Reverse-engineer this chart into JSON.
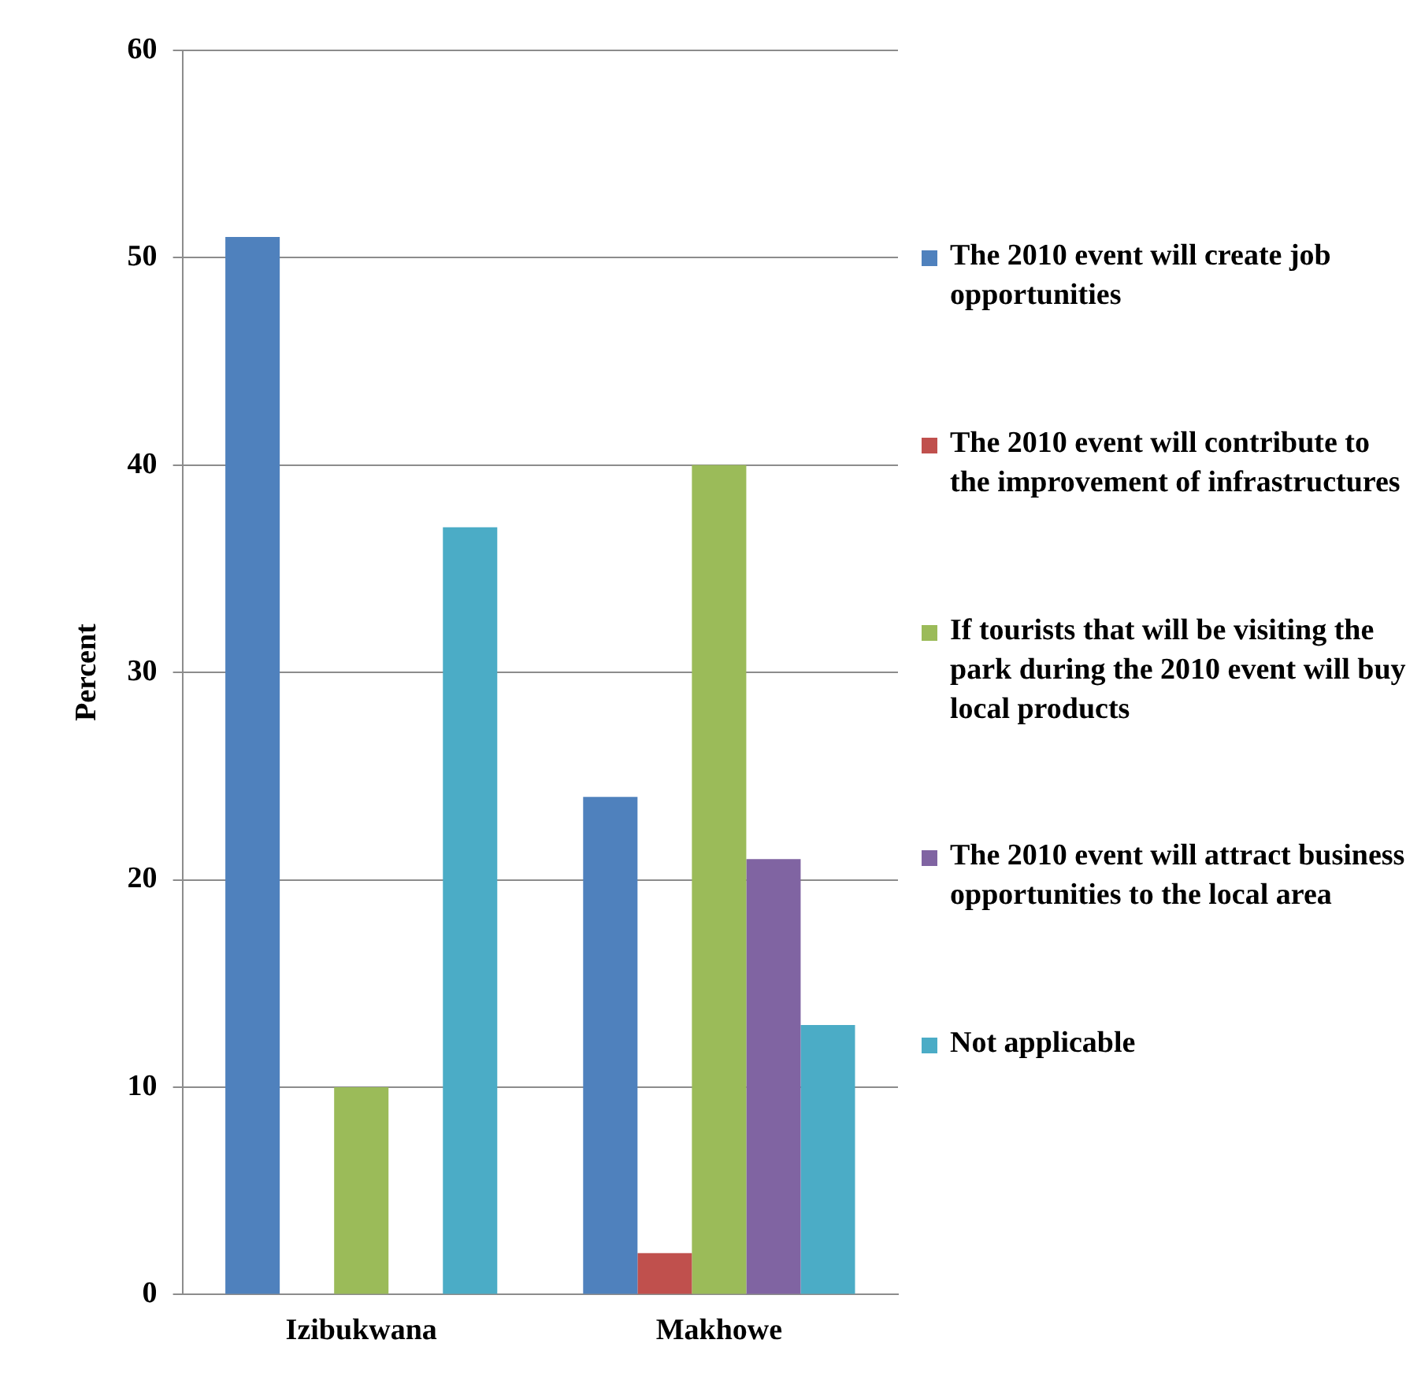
{
  "chart_data": {
    "type": "bar",
    "ylabel": "Percent",
    "categories": [
      "Izibukwana",
      "Makhowe"
    ],
    "series": [
      {
        "name": "The 2010 event will create job opportunities",
        "color": "#4f81bd",
        "values": [
          51,
          24
        ]
      },
      {
        "name": "The 2010 event will contribute to the improvement of infrastructures",
        "color": "#c0504d",
        "values": [
          0,
          2
        ]
      },
      {
        "name": "If tourists that will be visiting the park during the 2010 event will buy local products",
        "color": "#9bbb59",
        "values": [
          10,
          40
        ]
      },
      {
        "name": "The 2010 event will attract business opportunities to the local area",
        "color": "#8064a2",
        "values": [
          0,
          21
        ]
      },
      {
        "name": "Not applicable",
        "color": "#4bacc6",
        "values": [
          37,
          13
        ]
      }
    ],
    "ylim": [
      0,
      60
    ],
    "yticks": [
      0,
      10,
      20,
      30,
      40,
      50,
      60
    ],
    "grid": "y",
    "legend": "right"
  }
}
